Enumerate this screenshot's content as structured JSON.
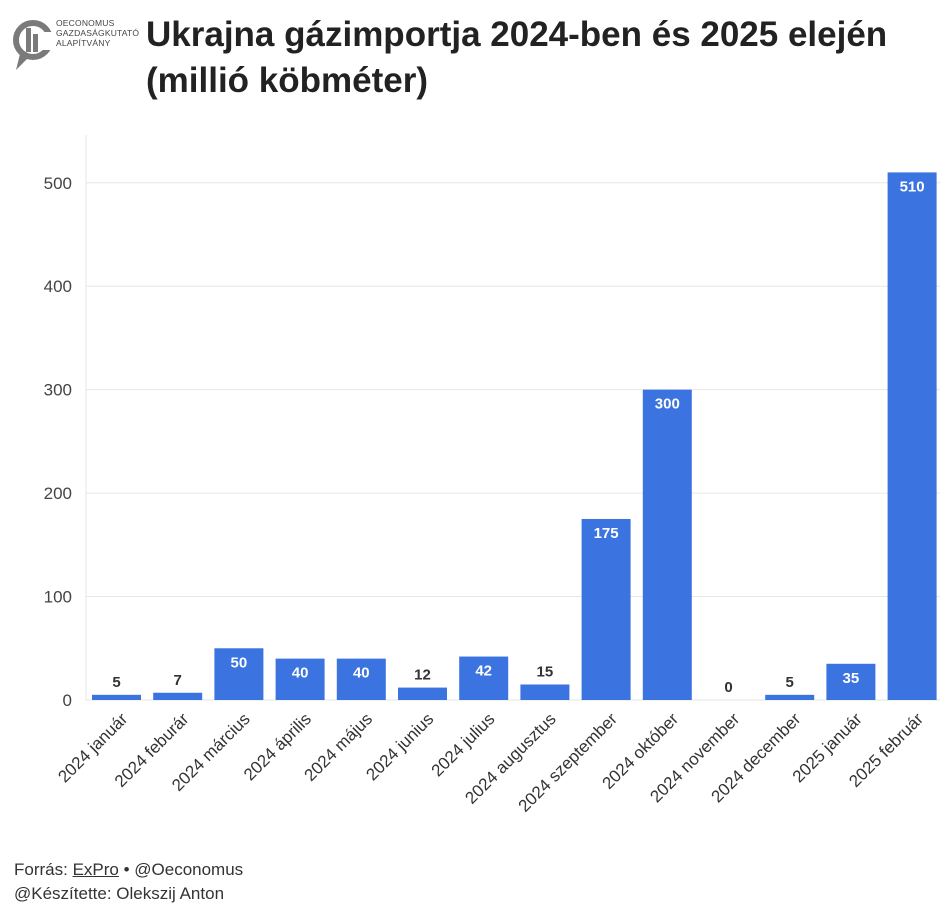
{
  "header": {
    "logo_lines": [
      "OECONOMUS",
      "GAZDASÁGKUTATÓ",
      "ALAPÍTVÁNY"
    ],
    "title": "Ukrajna gázimportja 2024-ben és 2025 elején (millió köbméter)"
  },
  "footer": {
    "source_prefix": "Forrás: ",
    "source_name": "ExPro",
    "source_suffix": " • @Oeconomus",
    "author": "@Készítette: Olekszij Anton"
  },
  "colors": {
    "bar": "#3b74e0",
    "grid": "#e6e6e6",
    "logo": "#7a7a7a"
  },
  "chart_data": {
    "type": "bar",
    "title": "Ukrajna gázimportja 2024-ben és 2025 elején (millió köbméter)",
    "categories": [
      "2024 január",
      "2024 feburár",
      "2024 március",
      "2024 április",
      "2024 május",
      "2024 junius",
      "2024 julius",
      "2024 augusztus",
      "2024 szeptember",
      "2024 október",
      "2024 november",
      "2024 december",
      "2025 január",
      "2025 február"
    ],
    "values": [
      5,
      7,
      50,
      40,
      40,
      12,
      42,
      15,
      175,
      300,
      0,
      5,
      35,
      510
    ],
    "yticks": [
      0,
      100,
      200,
      300,
      400,
      500
    ],
    "ylim": [
      0,
      520
    ],
    "grid": true,
    "xlabel": "",
    "ylabel": ""
  }
}
